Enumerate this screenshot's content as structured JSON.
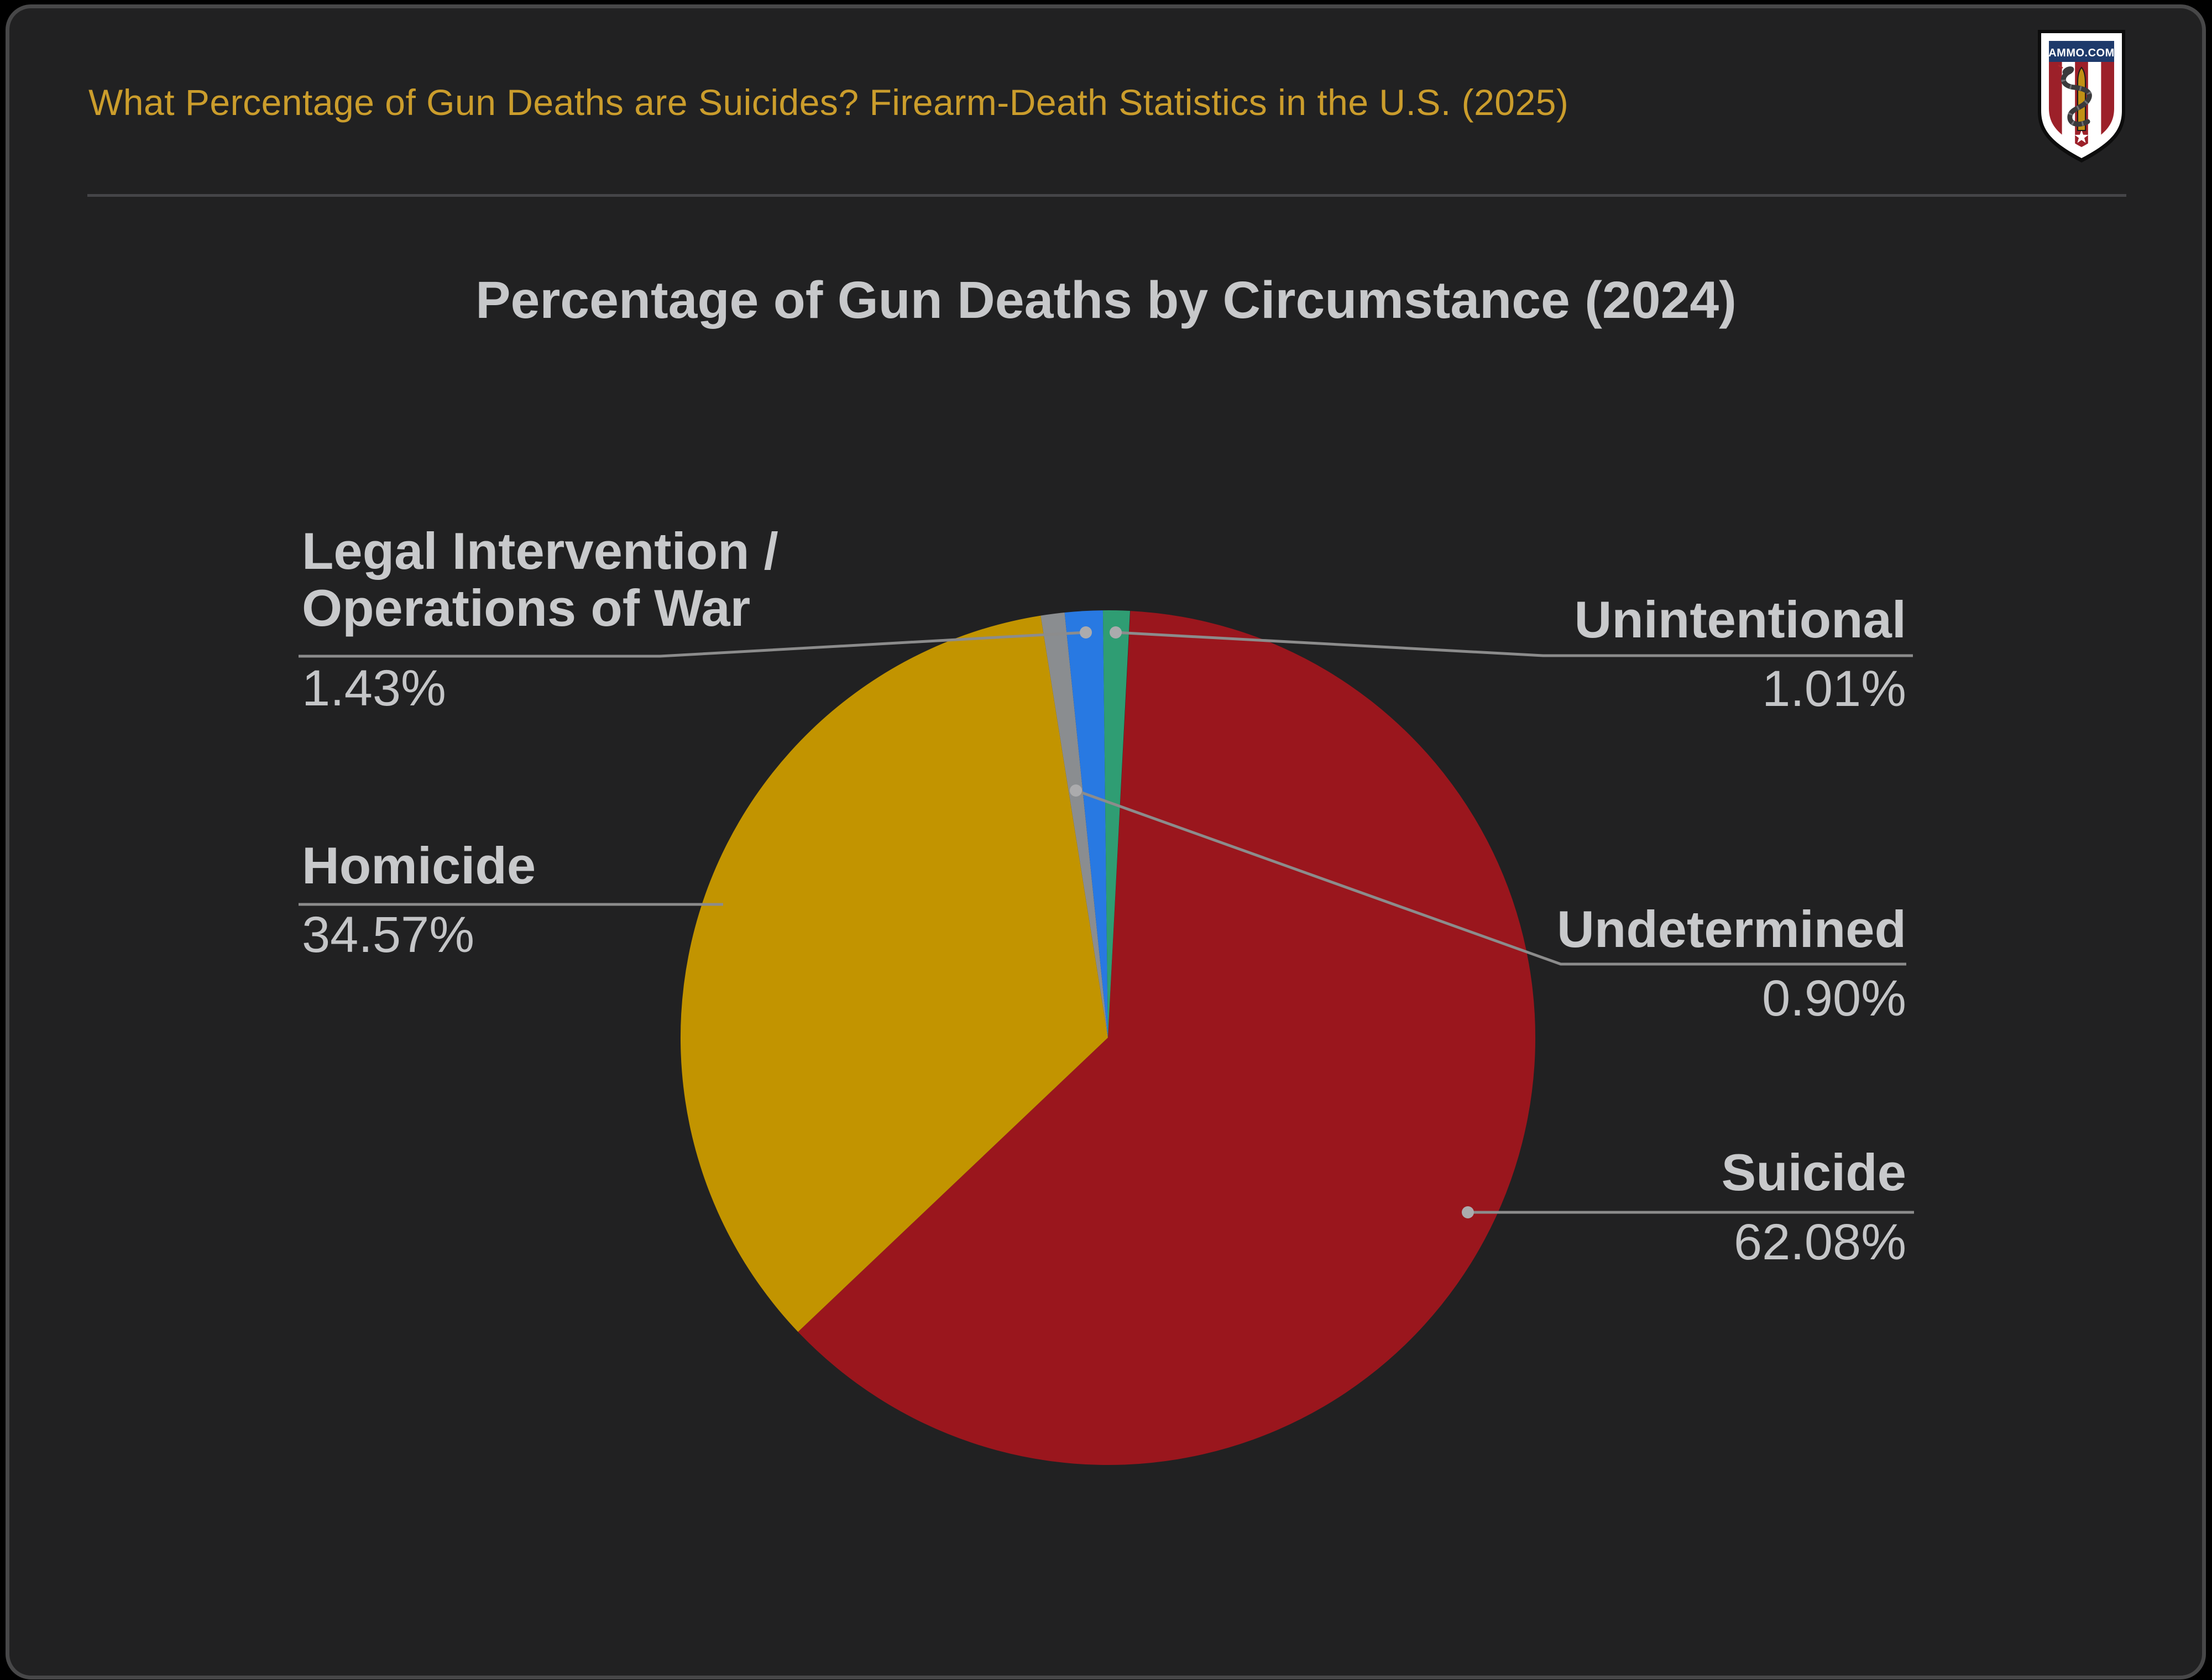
{
  "header": {
    "title": "What Percentage of Gun Deaths are Suicides? Firearm-Death Statistics in the U.S. (2025)",
    "logo_text": "AMMO.COM"
  },
  "chart": {
    "title": "Percentage of Gun Deaths by Circumstance (2024)"
  },
  "chart_data": {
    "type": "pie",
    "title": "Percentage of Gun Deaths by Circumstance (2024)",
    "unit": "%",
    "direction": "clockwise",
    "start_angle_deg": 3,
    "grid": false,
    "legend_position": "callout-labels",
    "slices": [
      {
        "label": "Suicide",
        "value": 62.08,
        "pct": "62.08%",
        "color": "#9A161D"
      },
      {
        "label": "Homicide",
        "value": 34.57,
        "pct": "34.57%",
        "color": "#C29400"
      },
      {
        "label": "Undetermined",
        "value": 0.9,
        "pct": "0.90%",
        "color": "#8A8D90"
      },
      {
        "label": "Legal Intervention / Operations of War",
        "value": 1.43,
        "pct": "1.43%",
        "color": "#2879E2"
      },
      {
        "label": "Unintentional",
        "value": 1.01,
        "pct": "1.01%",
        "color": "#2F9D73"
      }
    ]
  },
  "theme": {
    "page_bg": "#000000",
    "card_bg": "#212122",
    "accent_gold": "#CB9D2C",
    "label_color": "#C8C9CB",
    "leader_line_color": "#8C8C8C",
    "leader_dot_color": "#ABABAD",
    "logo": {
      "shield_white": "#FFFFFF",
      "stripe_red": "#9C2029",
      "chief_navy": "#1E3A6B",
      "bullet_gold": "#C19115",
      "snake_gray": "#3A3A3C"
    }
  }
}
